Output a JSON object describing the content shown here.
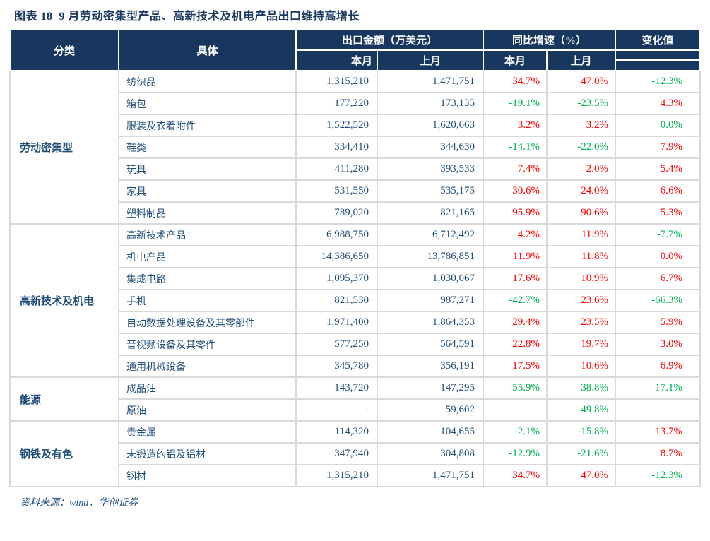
{
  "title": "图表 18  9 月劳动密集型产品、高新技术及机电产品出口维持高增长",
  "source_note": "资料来源：wind，华创证券",
  "colors": {
    "header_bg": "#17375E",
    "text_navy": "#1F4E79",
    "positive_red": "#FF0000",
    "negative_green": "#00B050",
    "grid_border": "#D9D9D9"
  },
  "table": {
    "header": {
      "col_category": "分类",
      "col_item": "具体",
      "group_amount": "出口金额（万美元）",
      "group_yoy": "同比增速（%）",
      "col_change": "变化值",
      "sub_this_month": "本月",
      "sub_last_month": "上月"
    },
    "sections": [
      {
        "category": "劳动密集型",
        "rows": [
          {
            "item": "纺织品",
            "amount_this": "1,315,210",
            "amount_last": "1,471,751",
            "yoy_this": "34.7%",
            "yoy_this_color": "red",
            "yoy_last": "47.0%",
            "yoy_last_color": "red",
            "change": "-12.3%",
            "change_color": "green"
          },
          {
            "item": "箱包",
            "amount_this": "177,220",
            "amount_last": "173,135",
            "yoy_this": "-19.1%",
            "yoy_this_color": "green",
            "yoy_last": "-23.5%",
            "yoy_last_color": "green",
            "change": "4.3%",
            "change_color": "red"
          },
          {
            "item": "服装及衣着附件",
            "amount_this": "1,522,520",
            "amount_last": "1,620,663",
            "yoy_this": "3.2%",
            "yoy_this_color": "red",
            "yoy_last": "3.2%",
            "yoy_last_color": "red",
            "change": "0.0%",
            "change_color": "green"
          },
          {
            "item": "鞋类",
            "amount_this": "334,410",
            "amount_last": "344,630",
            "yoy_this": "-14.1%",
            "yoy_this_color": "green",
            "yoy_last": "-22.0%",
            "yoy_last_color": "green",
            "change": "7.9%",
            "change_color": "red"
          },
          {
            "item": "玩具",
            "amount_this": "411,280",
            "amount_last": "393,533",
            "yoy_this": "7.4%",
            "yoy_this_color": "red",
            "yoy_last": "2.0%",
            "yoy_last_color": "red",
            "change": "5.4%",
            "change_color": "red"
          },
          {
            "item": "家具",
            "amount_this": "531,550",
            "amount_last": "535,175",
            "yoy_this": "30.6%",
            "yoy_this_color": "red",
            "yoy_last": "24.0%",
            "yoy_last_color": "red",
            "change": "6.6%",
            "change_color": "red"
          },
          {
            "item": "塑料制品",
            "amount_this": "789,020",
            "amount_last": "821,165",
            "yoy_this": "95.9%",
            "yoy_this_color": "red",
            "yoy_last": "90.6%",
            "yoy_last_color": "red",
            "change": "5.3%",
            "change_color": "red"
          }
        ]
      },
      {
        "category": "高新技术及机电",
        "rows": [
          {
            "item": "高新技术产品",
            "amount_this": "6,988,750",
            "amount_last": "6,712,492",
            "yoy_this": "4.2%",
            "yoy_this_color": "red",
            "yoy_last": "11.9%",
            "yoy_last_color": "red",
            "change": "-7.7%",
            "change_color": "green"
          },
          {
            "item": "机电产品",
            "amount_this": "14,386,650",
            "amount_last": "13,786,851",
            "yoy_this": "11.9%",
            "yoy_this_color": "red",
            "yoy_last": "11.8%",
            "yoy_last_color": "red",
            "change": "0.0%",
            "change_color": "red"
          },
          {
            "item": "集成电路",
            "amount_this": "1,095,370",
            "amount_last": "1,030,067",
            "yoy_this": "17.6%",
            "yoy_this_color": "red",
            "yoy_last": "10.9%",
            "yoy_last_color": "red",
            "change": "6.7%",
            "change_color": "red"
          },
          {
            "item": "手机",
            "amount_this": "821,530",
            "amount_last": "987,271",
            "yoy_this": "-42.7%",
            "yoy_this_color": "green",
            "yoy_last": "23.6%",
            "yoy_last_color": "red",
            "change": "-66.3%",
            "change_color": "green"
          },
          {
            "item": "自动数据处理设备及其零部件",
            "amount_this": "1,971,400",
            "amount_last": "1,864,353",
            "yoy_this": "29.4%",
            "yoy_this_color": "red",
            "yoy_last": "23.5%",
            "yoy_last_color": "red",
            "change": "5.9%",
            "change_color": "red"
          },
          {
            "item": "音视频设备及其零件",
            "amount_this": "577,250",
            "amount_last": "564,591",
            "yoy_this": "22.8%",
            "yoy_this_color": "red",
            "yoy_last": "19.7%",
            "yoy_last_color": "red",
            "change": "3.0%",
            "change_color": "red"
          },
          {
            "item": "通用机械设备",
            "amount_this": "345,780",
            "amount_last": "356,191",
            "yoy_this": "17.5%",
            "yoy_this_color": "red",
            "yoy_last": "10.6%",
            "yoy_last_color": "red",
            "change": "6.9%",
            "change_color": "red"
          }
        ]
      },
      {
        "category": "能源",
        "rows": [
          {
            "item": "成品油",
            "amount_this": "143,720",
            "amount_last": "147,295",
            "yoy_this": "-55.9%",
            "yoy_this_color": "green",
            "yoy_last": "-38.8%",
            "yoy_last_color": "green",
            "change": "-17.1%",
            "change_color": "green"
          },
          {
            "item": "原油",
            "amount_this": "-",
            "amount_last": "59,602",
            "yoy_this": "",
            "yoy_this_color": "",
            "yoy_last": "-49.8%",
            "yoy_last_color": "green",
            "change": "",
            "change_color": ""
          }
        ]
      },
      {
        "category": "钢铁及有色",
        "rows": [
          {
            "item": "贵金属",
            "amount_this": "114,320",
            "amount_last": "104,655",
            "yoy_this": "-2.1%",
            "yoy_this_color": "green",
            "yoy_last": "-15.8%",
            "yoy_last_color": "green",
            "change": "13.7%",
            "change_color": "red"
          },
          {
            "item": "未锻造的铝及铝材",
            "amount_this": "347,940",
            "amount_last": "304,808",
            "yoy_this": "-12.9%",
            "yoy_this_color": "green",
            "yoy_last": "-21.6%",
            "yoy_last_color": "green",
            "change": "8.7%",
            "change_color": "red"
          },
          {
            "item": "钢材",
            "amount_this": "1,315,210",
            "amount_last": "1,471,751",
            "yoy_this": "34.7%",
            "yoy_this_color": "red",
            "yoy_last": "47.0%",
            "yoy_last_color": "red",
            "change": "-12.3%",
            "change_color": "green"
          }
        ]
      }
    ]
  }
}
